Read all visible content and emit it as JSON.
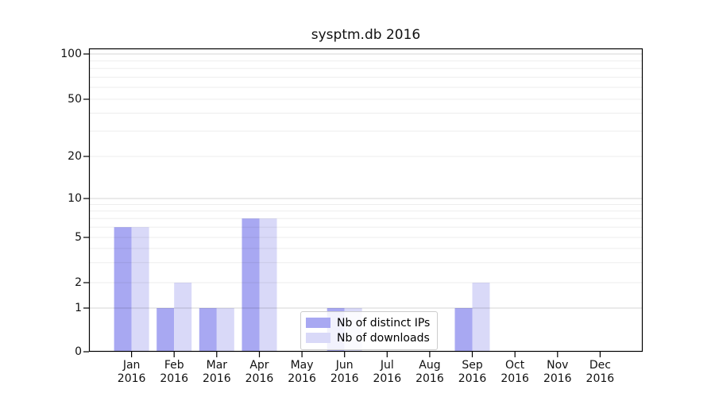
{
  "chart_data": {
    "type": "bar",
    "title": "sysptm.db 2016",
    "categories": [
      "Jan",
      "Feb",
      "Mar",
      "Apr",
      "May",
      "Jun",
      "Jul",
      "Aug",
      "Sep",
      "Oct",
      "Nov",
      "Dec"
    ],
    "x_year_label": "2016",
    "series": [
      {
        "name": "Nb of distinct IPs",
        "color": "#a8a8f2",
        "values": [
          6,
          1,
          1,
          7,
          0,
          1,
          0,
          0,
          1,
          0,
          0,
          0
        ]
      },
      {
        "name": "Nb of downloads",
        "color": "#d9d9f8",
        "values": [
          6,
          2,
          1,
          7,
          0,
          1,
          0,
          0,
          2,
          0,
          0,
          0
        ]
      }
    ],
    "yticks": [
      0,
      1,
      2,
      5,
      10,
      20,
      50,
      100
    ],
    "ylim": [
      0,
      100
    ],
    "scale": "quasi-log",
    "grid": "horizontal",
    "legend_position": "lower-center"
  }
}
